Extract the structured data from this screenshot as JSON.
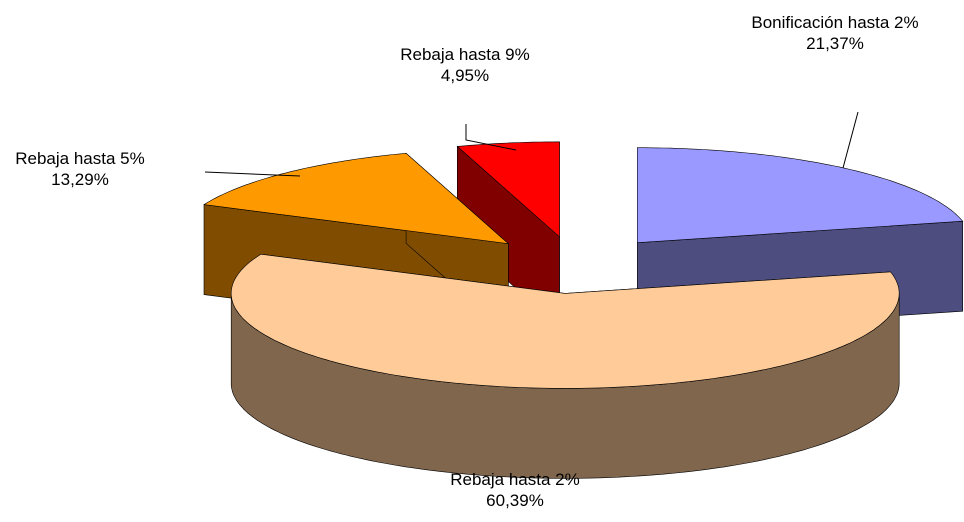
{
  "chart_data": {
    "type": "pie",
    "categories": [
      "Bonificación hasta 2%",
      "Rebaja hasta 2%",
      "Rebaja hasta 5%",
      "Rebaja hasta 9%"
    ],
    "values": [
      21.37,
      60.39,
      13.29,
      4.95
    ],
    "value_labels": [
      "21,37%",
      "60,39%",
      "13,29%",
      "4,95%"
    ],
    "colors": [
      "#9999ff",
      "#ffcc99",
      "#ff9900",
      "#ff0000"
    ]
  }
}
